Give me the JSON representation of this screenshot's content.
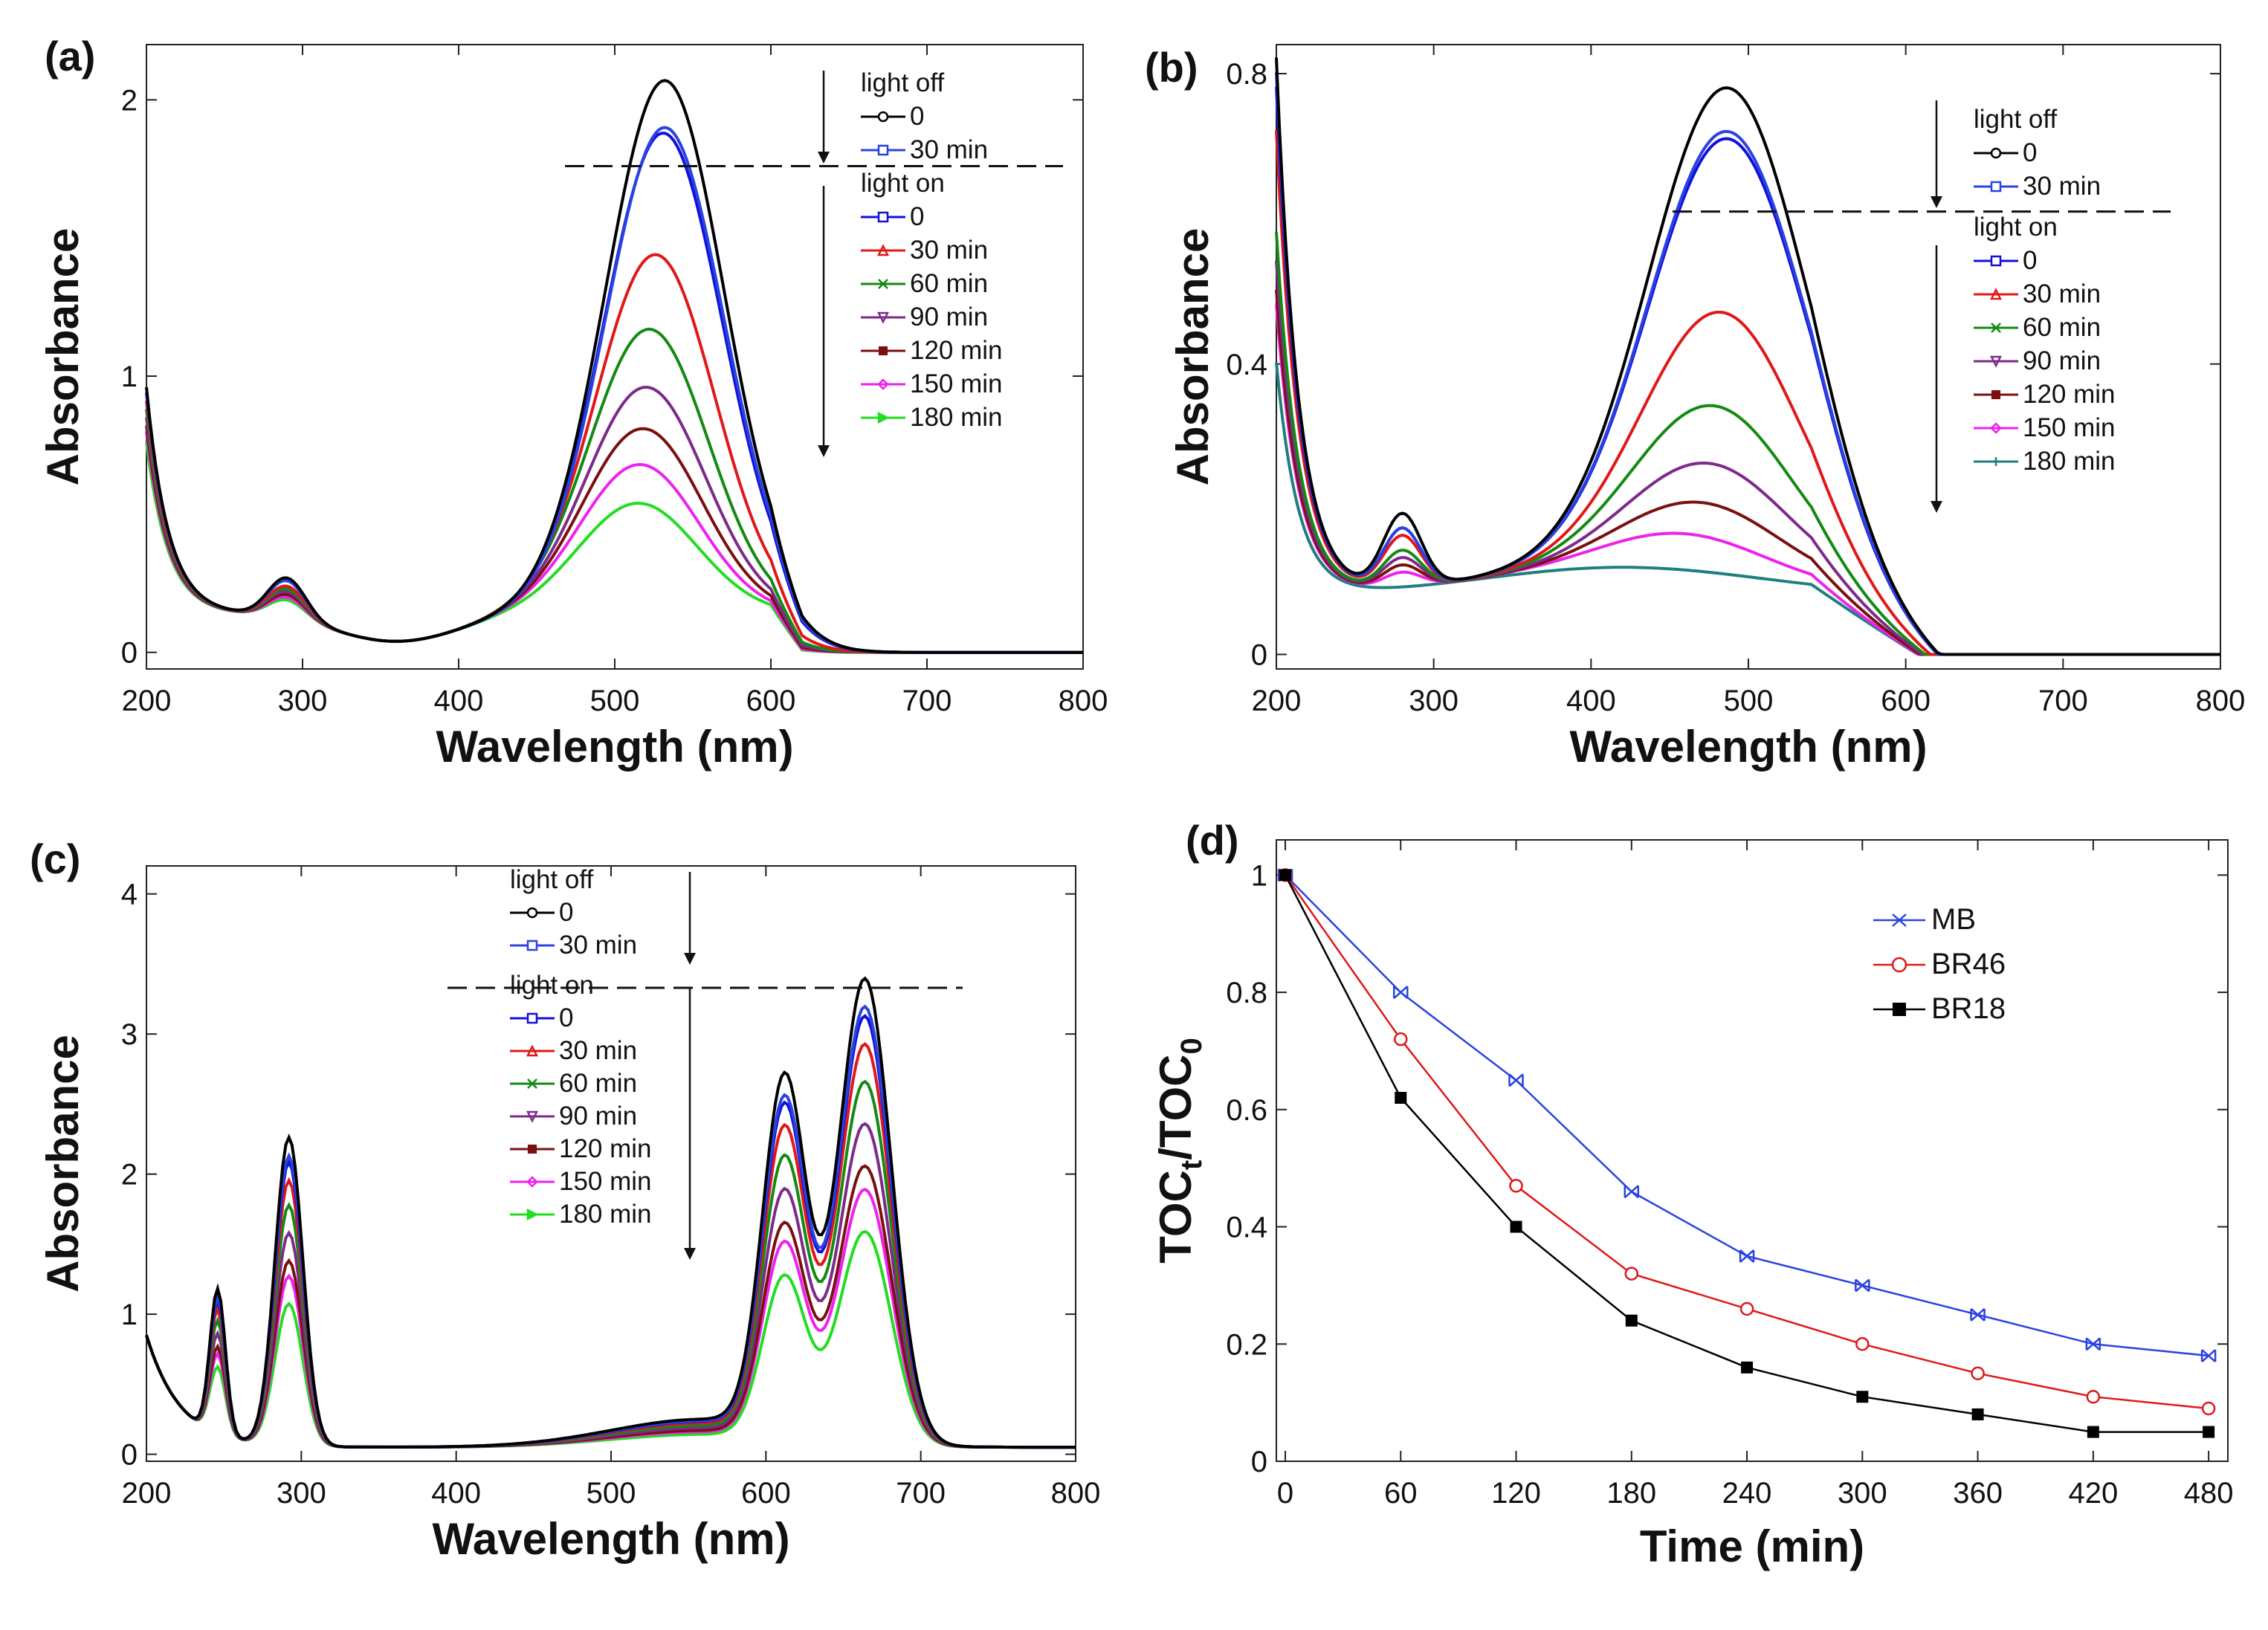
{
  "chart_data": [
    {
      "type": "line",
      "panel": "(a)",
      "xlabel": "Wavelength (nm)",
      "ylabel": "Absorbance",
      "xlim": [
        200,
        800
      ],
      "ylim": [
        -0.06,
        2.2
      ],
      "xticks": [
        200,
        300,
        400,
        500,
        600,
        700,
        800
      ],
      "xtick_labels": [
        "200",
        "300",
        "400",
        "500",
        "600",
        "700",
        "800"
      ],
      "yticks": [
        0,
        1,
        2
      ],
      "ytick_labels": [
        "0",
        "1",
        "2"
      ],
      "legend": {
        "off_title": "light off",
        "on_title": "light on",
        "off_entries": [
          "0",
          "30 min"
        ],
        "on_entries": [
          "0",
          "30 min",
          "60 min",
          "90 min",
          "120 min",
          "150 min",
          "180 min"
        ]
      },
      "dashed_level": 1.76,
      "uv_peak": {
        "center": 290,
        "width": 12
      },
      "vis_peak": {
        "width": 38
      },
      "series": [
        {
          "name": "0 (light off)",
          "color": "#000000",
          "marker": "o",
          "base": 0.82,
          "uv": 0.15,
          "vis": 1.93,
          "center": 532
        },
        {
          "name": "30 min (light off)",
          "color": "#2a43e0",
          "marker": "s",
          "base": 0.8,
          "uv": 0.14,
          "vis": 1.76,
          "center": 532
        },
        {
          "name": "0 (light on)",
          "color": "#1111dd",
          "marker": "s",
          "base": 0.8,
          "uv": 0.14,
          "vis": 1.74,
          "center": 531
        },
        {
          "name": "30 min",
          "color": "#e01818",
          "marker": "^",
          "base": 0.77,
          "uv": 0.12,
          "vis": 1.3,
          "center": 526
        },
        {
          "name": "60 min",
          "color": "#138a13",
          "marker": "x",
          "base": 0.74,
          "uv": 0.11,
          "vis": 1.03,
          "center": 522
        },
        {
          "name": "90 min",
          "color": "#7d2a8a",
          "marker": "v",
          "base": 0.71,
          "uv": 0.1,
          "vis": 0.82,
          "center": 520
        },
        {
          "name": "120 min",
          "color": "#7a1010",
          "marker": "*",
          "base": 0.68,
          "uv": 0.09,
          "vis": 0.67,
          "center": 518
        },
        {
          "name": "150 min",
          "color": "#ee22ee",
          "marker": "d",
          "base": 0.66,
          "uv": 0.08,
          "vis": 0.54,
          "center": 516
        },
        {
          "name": "180 min",
          "color": "#22dd22",
          "marker": ">",
          "base": 0.62,
          "uv": 0.07,
          "vis": 0.4,
          "center": 515
        }
      ]
    },
    {
      "type": "line",
      "panel": "(b)",
      "xlabel": "Wavelength (nm)",
      "ylabel": "Absorbance",
      "xlim": [
        200,
        800
      ],
      "ylim": [
        -0.02,
        0.84
      ],
      "xticks": [
        200,
        300,
        400,
        500,
        600,
        700,
        800
      ],
      "xtick_labels": [
        "200",
        "300",
        "400",
        "500",
        "600",
        "700",
        "800"
      ],
      "yticks": [
        0,
        0.4,
        0.8
      ],
      "ytick_labels": [
        "0",
        "0.4",
        "0.8"
      ],
      "legend": {
        "off_title": "light off",
        "on_title": "light on",
        "off_entries": [
          "0",
          "30 min"
        ],
        "on_entries": [
          "0",
          "30 min",
          "60 min",
          "90 min",
          "120 min",
          "150 min",
          "180 min"
        ]
      },
      "dashed_level": 0.61,
      "uv_peak": {
        "center": 280,
        "width": 12
      },
      "vis_peak": {
        "width": 50
      },
      "series": [
        {
          "name": "0 (light off)",
          "color": "#000000",
          "marker": "o",
          "base": 0.74,
          "uv": 0.1,
          "vis": 0.67,
          "center": 487
        },
        {
          "name": "30 min (light off)",
          "color": "#2a43e0",
          "marker": "s",
          "base": 0.72,
          "uv": 0.08,
          "vis": 0.61,
          "center": 487
        },
        {
          "name": "0 (light on)",
          "color": "#1111dd",
          "marker": "s",
          "base": 0.7,
          "uv": 0.08,
          "vis": 0.6,
          "center": 487
        },
        {
          "name": "30 min",
          "color": "#e01818",
          "marker": "^",
          "base": 0.64,
          "uv": 0.07,
          "vis": 0.36,
          "center": 483
        },
        {
          "name": "60 min",
          "color": "#138a13",
          "marker": "x",
          "base": 0.5,
          "uv": 0.05,
          "vis": 0.23,
          "center": 478
        },
        {
          "name": "90 min",
          "color": "#7d2a8a",
          "marker": "v",
          "base": 0.46,
          "uv": 0.04,
          "vis": 0.15,
          "center": 475
        },
        {
          "name": "120 min",
          "color": "#7a1010",
          "marker": "*",
          "base": 0.42,
          "uv": 0.03,
          "vis": 0.095,
          "center": 470
        },
        {
          "name": "150 min",
          "color": "#ee22ee",
          "marker": "d",
          "base": 0.4,
          "uv": 0.02,
          "vis": 0.05,
          "center": 460
        },
        {
          "name": "180 min",
          "color": "#1f7f7f",
          "marker": "+",
          "base": 0.32,
          "uv": 0.0,
          "vis": 0.0,
          "center": 460
        }
      ]
    },
    {
      "type": "line",
      "panel": "(c)",
      "xlabel": "Wavelength (nm)",
      "ylabel": "Absorbance",
      "xlim": [
        200,
        800
      ],
      "ylim": [
        -0.05,
        4.2
      ],
      "xticks": [
        200,
        300,
        400,
        500,
        600,
        700,
        800
      ],
      "xtick_labels": [
        "200",
        "300",
        "400",
        "500",
        "600",
        "700",
        "800"
      ],
      "yticks": [
        0,
        1,
        2,
        3,
        4
      ],
      "ytick_labels": [
        "0",
        "1",
        "2",
        "3",
        "4"
      ],
      "legend": {
        "off_title": "light off",
        "on_title": "light on",
        "off_entries": [
          "0",
          "30 min"
        ],
        "on_entries": [
          "0",
          "30 min",
          "60 min",
          "90 min",
          "120 min",
          "150 min",
          "180 min"
        ]
      },
      "dashed_level": 3.33,
      "peaks": [
        {
          "center": 246,
          "width": 5,
          "rel": 0.47
        },
        {
          "center": 292,
          "width": 9,
          "rel": 1.0
        },
        {
          "center": 612,
          "width": 14,
          "rel": 1.14
        },
        {
          "center": 664,
          "width": 17,
          "rel": 1.5
        }
      ],
      "series": [
        {
          "name": "0 (light off)",
          "color": "#000000",
          "marker": "o",
          "amp": 1.0
        },
        {
          "name": "30 min (light off)",
          "color": "#2a43e0",
          "marker": "s",
          "amp": 0.94
        },
        {
          "name": "0 (light on)",
          "color": "#1111dd",
          "marker": "s",
          "amp": 0.92
        },
        {
          "name": "30 min",
          "color": "#e01818",
          "marker": "^",
          "amp": 0.86
        },
        {
          "name": "60 min",
          "color": "#138a13",
          "marker": "x",
          "amp": 0.78
        },
        {
          "name": "90 min",
          "color": "#7d2a8a",
          "marker": "v",
          "amp": 0.69
        },
        {
          "name": "120 min",
          "color": "#7a1010",
          "marker": "*",
          "amp": 0.6
        },
        {
          "name": "150 min",
          "color": "#ee22ee",
          "marker": "d",
          "amp": 0.55
        },
        {
          "name": "180 min",
          "color": "#22dd22",
          "marker": ">",
          "amp": 0.46
        }
      ]
    },
    {
      "type": "line",
      "panel": "(d)",
      "xlabel": "Time (min)",
      "ylabel": "TOCt/TOC0",
      "ylabel_parts": [
        "TOC",
        "t",
        "/TOC",
        "0"
      ],
      "xlim": [
        0,
        490
      ],
      "ylim": [
        0,
        1.06
      ],
      "xticks": [
        0,
        60,
        120,
        180,
        240,
        300,
        360,
        420,
        480
      ],
      "xtick_labels": [
        "0",
        "60",
        "120",
        "180",
        "240",
        "300",
        "360",
        "420",
        "480"
      ],
      "yticks": [
        0,
        0.2,
        0.4,
        0.6,
        0.8,
        1
      ],
      "ytick_labels": [
        "0",
        "0.2",
        "0.4",
        "0.6",
        "0.8",
        "1"
      ],
      "x": [
        0,
        60,
        120,
        180,
        240,
        300,
        360,
        420,
        480
      ],
      "series": [
        {
          "name": "MB",
          "color": "#2a43e0",
          "marker": "x",
          "values": [
            1.0,
            0.8,
            0.65,
            0.46,
            0.35,
            0.3,
            0.25,
            0.2,
            0.18
          ]
        },
        {
          "name": "BR46",
          "color": "#e01818",
          "marker": "o",
          "values": [
            1.0,
            0.72,
            0.47,
            0.32,
            0.26,
            0.2,
            0.15,
            0.11,
            0.09
          ]
        },
        {
          "name": "BR18",
          "color": "#000000",
          "marker": "s",
          "values": [
            1.0,
            0.62,
            0.4,
            0.24,
            0.16,
            0.11,
            0.08,
            0.05,
            0.05
          ]
        }
      ]
    }
  ]
}
